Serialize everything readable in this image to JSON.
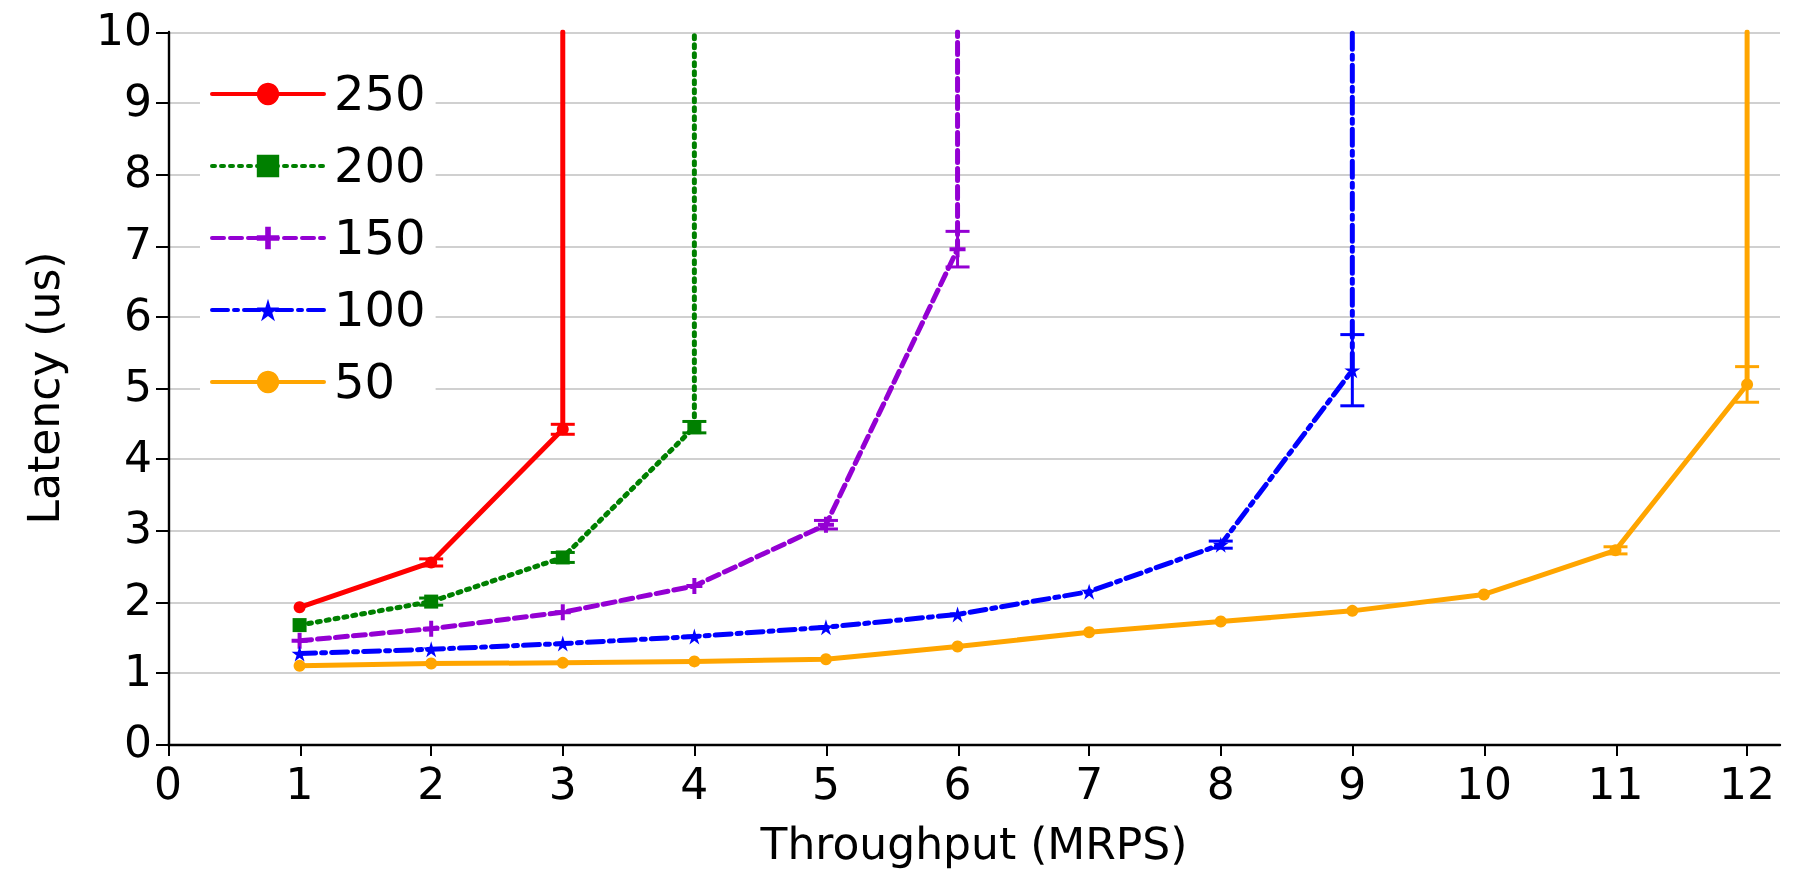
{
  "chart_data": {
    "type": "line",
    "xlabel": "Throughput (MRPS)",
    "ylabel": "Latency (us)",
    "xlim": [
      0,
      12.25
    ],
    "xticks": [
      0,
      1,
      2,
      3,
      4,
      5,
      6,
      7,
      8,
      9,
      10,
      11,
      12
    ],
    "ylim": [
      0,
      10
    ],
    "yticks": [
      0,
      1,
      2,
      3,
      4,
      5,
      6,
      7,
      8,
      9,
      10
    ],
    "grid": "y",
    "legend": "top left",
    "series": [
      {
        "name": "250",
        "color": "#ff0000",
        "marker": "circle",
        "line_style": "solid",
        "x": [
          1,
          2,
          3,
          3
        ],
        "values": [
          1.92,
          2.55,
          4.42,
          10
        ],
        "errors": [
          null,
          0.05,
          0.07,
          null
        ]
      },
      {
        "name": "200",
        "color": "#008000",
        "marker": "square",
        "line_style": "dotted",
        "x": [
          1,
          2,
          3,
          4,
          4
        ],
        "values": [
          1.67,
          2.0,
          2.62,
          4.45,
          10
        ],
        "errors": [
          null,
          0.05,
          0.07,
          0.08,
          null
        ]
      },
      {
        "name": "150",
        "color": "#9400d3",
        "marker": "cross",
        "line_style": "dashed",
        "x": [
          1,
          2,
          3,
          4,
          5,
          6,
          6
        ],
        "values": [
          1.45,
          1.62,
          1.85,
          2.22,
          3.08,
          6.95,
          10
        ],
        "errors": [
          null,
          null,
          null,
          null,
          0.06,
          0.25,
          null
        ]
      },
      {
        "name": "100",
        "color": "#0000ff",
        "marker": "star",
        "line_style": "dashdot",
        "x": [
          1,
          2,
          3,
          4,
          5,
          6,
          7,
          8,
          9,
          9
        ],
        "values": [
          1.27,
          1.33,
          1.41,
          1.51,
          1.64,
          1.82,
          2.14,
          2.8,
          5.25,
          10
        ],
        "errors": [
          null,
          null,
          null,
          null,
          null,
          null,
          null,
          0.05,
          0.5,
          null
        ]
      },
      {
        "name": "50",
        "color": "#ffa500",
        "marker": "circle",
        "line_style": "solid",
        "x": [
          1,
          2,
          3,
          4,
          5,
          6,
          7,
          8,
          9,
          10,
          11,
          12,
          12
        ],
        "values": [
          1.1,
          1.13,
          1.14,
          1.16,
          1.19,
          1.37,
          1.57,
          1.72,
          1.87,
          2.1,
          2.72,
          5.05,
          10
        ],
        "errors": [
          null,
          null,
          null,
          null,
          null,
          null,
          null,
          null,
          null,
          null,
          0.05,
          0.25,
          null
        ]
      }
    ]
  }
}
